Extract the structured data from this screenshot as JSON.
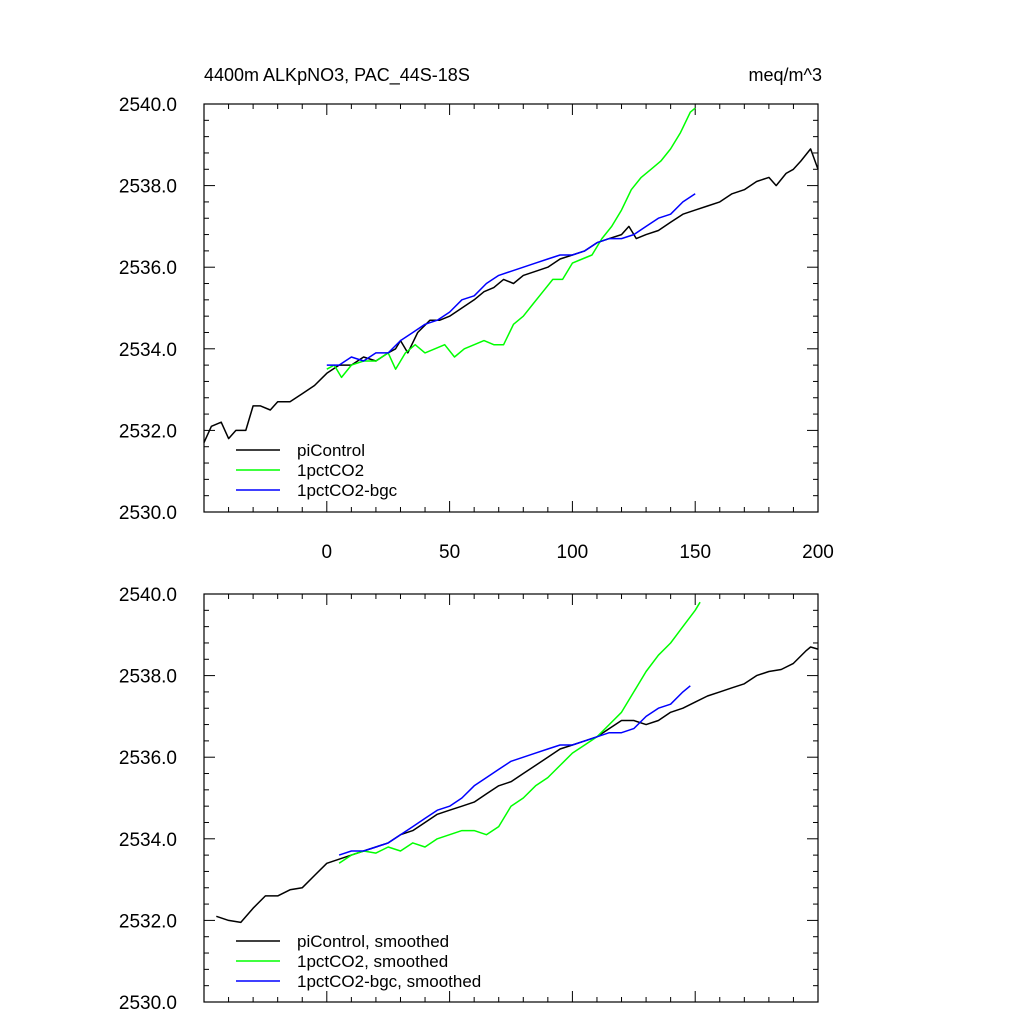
{
  "chart_data": [
    {
      "type": "line",
      "title": "4400m ALKpNO3, PAC_44S-18S",
      "units": "meq/m^3",
      "xlim": [
        -50,
        200
      ],
      "ylim": [
        2530,
        2540
      ],
      "xticks": [
        "0",
        "50",
        "100",
        "150",
        "200"
      ],
      "yticks": [
        "2530.0",
        "2532.0",
        "2534.0",
        "2536.0",
        "2538.0",
        "2540.0"
      ],
      "legend_position": "bottom-left",
      "grid": false,
      "series": [
        {
          "name": "piControl",
          "color": "#000000",
          "points": [
            [
              -50,
              2531.7
            ],
            [
              -47,
              2532.1
            ],
            [
              -43,
              2532.2
            ],
            [
              -40,
              2531.8
            ],
            [
              -37,
              2532.0
            ],
            [
              -33,
              2532.0
            ],
            [
              -30,
              2532.6
            ],
            [
              -27,
              2532.6
            ],
            [
              -23,
              2532.5
            ],
            [
              -20,
              2532.7
            ],
            [
              -15,
              2532.7
            ],
            [
              -10,
              2532.9
            ],
            [
              -5,
              2533.1
            ],
            [
              0,
              2533.4
            ],
            [
              5,
              2533.6
            ],
            [
              10,
              2533.6
            ],
            [
              15,
              2533.8
            ],
            [
              20,
              2533.7
            ],
            [
              25,
              2533.9
            ],
            [
              28,
              2534.0
            ],
            [
              30,
              2534.2
            ],
            [
              33,
              2533.9
            ],
            [
              37,
              2534.4
            ],
            [
              42,
              2534.7
            ],
            [
              46,
              2534.7
            ],
            [
              50,
              2534.8
            ],
            [
              55,
              2535.0
            ],
            [
              60,
              2535.2
            ],
            [
              64,
              2535.4
            ],
            [
              68,
              2535.5
            ],
            [
              72,
              2535.7
            ],
            [
              76,
              2535.6
            ],
            [
              80,
              2535.8
            ],
            [
              85,
              2535.9
            ],
            [
              90,
              2536.0
            ],
            [
              95,
              2536.2
            ],
            [
              100,
              2536.3
            ],
            [
              105,
              2536.4
            ],
            [
              110,
              2536.6
            ],
            [
              115,
              2536.7
            ],
            [
              120,
              2536.8
            ],
            [
              123,
              2537.0
            ],
            [
              126,
              2536.7
            ],
            [
              130,
              2536.8
            ],
            [
              135,
              2536.9
            ],
            [
              140,
              2537.1
            ],
            [
              145,
              2537.3
            ],
            [
              150,
              2537.4
            ],
            [
              155,
              2537.5
            ],
            [
              160,
              2537.6
            ],
            [
              165,
              2537.8
            ],
            [
              170,
              2537.9
            ],
            [
              175,
              2538.1
            ],
            [
              180,
              2538.2
            ],
            [
              183,
              2538.0
            ],
            [
              187,
              2538.3
            ],
            [
              190,
              2538.4
            ],
            [
              193,
              2538.6
            ],
            [
              197,
              2538.9
            ],
            [
              200,
              2538.4
            ]
          ]
        },
        {
          "name": "1pctCO2",
          "color": "#00ff00",
          "points": [
            [
              0,
              2533.5
            ],
            [
              3,
              2533.6
            ],
            [
              6,
              2533.3
            ],
            [
              10,
              2533.6
            ],
            [
              15,
              2533.7
            ],
            [
              20,
              2533.7
            ],
            [
              25,
              2533.9
            ],
            [
              28,
              2533.5
            ],
            [
              32,
              2533.9
            ],
            [
              36,
              2534.1
            ],
            [
              40,
              2533.9
            ],
            [
              44,
              2534.0
            ],
            [
              48,
              2534.1
            ],
            [
              52,
              2533.8
            ],
            [
              56,
              2534.0
            ],
            [
              60,
              2534.1
            ],
            [
              64,
              2534.2
            ],
            [
              68,
              2534.1
            ],
            [
              72,
              2534.1
            ],
            [
              76,
              2534.6
            ],
            [
              80,
              2534.8
            ],
            [
              84,
              2535.1
            ],
            [
              88,
              2535.4
            ],
            [
              92,
              2535.7
            ],
            [
              96,
              2535.7
            ],
            [
              100,
              2536.1
            ],
            [
              104,
              2536.2
            ],
            [
              108,
              2536.3
            ],
            [
              112,
              2536.7
            ],
            [
              116,
              2537.0
            ],
            [
              120,
              2537.4
            ],
            [
              124,
              2537.9
            ],
            [
              128,
              2538.2
            ],
            [
              132,
              2538.4
            ],
            [
              136,
              2538.6
            ],
            [
              140,
              2538.9
            ],
            [
              144,
              2539.3
            ],
            [
              148,
              2539.8
            ],
            [
              150,
              2539.9
            ]
          ]
        },
        {
          "name": "1pctCO2-bgc",
          "color": "#0000ff",
          "points": [
            [
              0,
              2533.6
            ],
            [
              5,
              2533.6
            ],
            [
              10,
              2533.8
            ],
            [
              15,
              2533.7
            ],
            [
              20,
              2533.9
            ],
            [
              25,
              2533.9
            ],
            [
              30,
              2534.2
            ],
            [
              35,
              2534.4
            ],
            [
              40,
              2534.6
            ],
            [
              45,
              2534.7
            ],
            [
              50,
              2534.9
            ],
            [
              55,
              2535.2
            ],
            [
              60,
              2535.3
            ],
            [
              65,
              2535.6
            ],
            [
              70,
              2535.8
            ],
            [
              75,
              2535.9
            ],
            [
              80,
              2536.0
            ],
            [
              85,
              2536.1
            ],
            [
              90,
              2536.2
            ],
            [
              95,
              2536.3
            ],
            [
              100,
              2536.3
            ],
            [
              105,
              2536.4
            ],
            [
              110,
              2536.6
            ],
            [
              115,
              2536.7
            ],
            [
              120,
              2536.7
            ],
            [
              125,
              2536.8
            ],
            [
              130,
              2537.0
            ],
            [
              135,
              2537.2
            ],
            [
              140,
              2537.3
            ],
            [
              145,
              2537.6
            ],
            [
              150,
              2537.8
            ]
          ]
        }
      ]
    },
    {
      "type": "line",
      "title": "",
      "xlim": [
        -50,
        200
      ],
      "ylim": [
        2530,
        2540
      ],
      "yticks": [
        "2530.0",
        "2532.0",
        "2534.0",
        "2536.0",
        "2538.0",
        "2540.0"
      ],
      "legend_position": "bottom-left",
      "grid": false,
      "series": [
        {
          "name": "piControl, smoothed",
          "color": "#000000",
          "points": [
            [
              -45,
              2532.1
            ],
            [
              -40,
              2532.0
            ],
            [
              -35,
              2531.95
            ],
            [
              -30,
              2532.3
            ],
            [
              -25,
              2532.6
            ],
            [
              -20,
              2532.6
            ],
            [
              -15,
              2532.75
            ],
            [
              -10,
              2532.8
            ],
            [
              -5,
              2533.1
            ],
            [
              0,
              2533.4
            ],
            [
              5,
              2533.5
            ],
            [
              10,
              2533.6
            ],
            [
              15,
              2533.7
            ],
            [
              20,
              2533.8
            ],
            [
              25,
              2533.9
            ],
            [
              30,
              2534.1
            ],
            [
              35,
              2534.2
            ],
            [
              40,
              2534.4
            ],
            [
              45,
              2534.6
            ],
            [
              50,
              2534.7
            ],
            [
              55,
              2534.8
            ],
            [
              60,
              2534.9
            ],
            [
              65,
              2535.1
            ],
            [
              70,
              2535.3
            ],
            [
              75,
              2535.4
            ],
            [
              80,
              2535.6
            ],
            [
              85,
              2535.8
            ],
            [
              90,
              2536.0
            ],
            [
              95,
              2536.2
            ],
            [
              100,
              2536.3
            ],
            [
              105,
              2536.4
            ],
            [
              110,
              2536.5
            ],
            [
              115,
              2536.7
            ],
            [
              120,
              2536.9
            ],
            [
              125,
              2536.9
            ],
            [
              130,
              2536.8
            ],
            [
              135,
              2536.9
            ],
            [
              140,
              2537.1
            ],
            [
              145,
              2537.2
            ],
            [
              150,
              2537.35
            ],
            [
              155,
              2537.5
            ],
            [
              160,
              2537.6
            ],
            [
              165,
              2537.7
            ],
            [
              170,
              2537.8
            ],
            [
              175,
              2538.0
            ],
            [
              180,
              2538.1
            ],
            [
              185,
              2538.15
            ],
            [
              190,
              2538.3
            ],
            [
              195,
              2538.6
            ],
            [
              197,
              2538.7
            ],
            [
              200,
              2538.65
            ]
          ]
        },
        {
          "name": "1pctCO2, smoothed",
          "color": "#00ff00",
          "points": [
            [
              5,
              2533.4
            ],
            [
              10,
              2533.6
            ],
            [
              15,
              2533.7
            ],
            [
              20,
              2533.65
            ],
            [
              25,
              2533.8
            ],
            [
              30,
              2533.7
            ],
            [
              35,
              2533.9
            ],
            [
              40,
              2533.8
            ],
            [
              45,
              2534.0
            ],
            [
              50,
              2534.1
            ],
            [
              55,
              2534.2
            ],
            [
              60,
              2534.2
            ],
            [
              65,
              2534.1
            ],
            [
              70,
              2534.3
            ],
            [
              75,
              2534.8
            ],
            [
              80,
              2535.0
            ],
            [
              85,
              2535.3
            ],
            [
              90,
              2535.5
            ],
            [
              95,
              2535.8
            ],
            [
              100,
              2536.1
            ],
            [
              105,
              2536.3
            ],
            [
              110,
              2536.5
            ],
            [
              115,
              2536.8
            ],
            [
              120,
              2537.1
            ],
            [
              125,
              2537.6
            ],
            [
              130,
              2538.1
            ],
            [
              135,
              2538.5
            ],
            [
              140,
              2538.8
            ],
            [
              145,
              2539.2
            ],
            [
              150,
              2539.6
            ],
            [
              152,
              2539.8
            ]
          ]
        },
        {
          "name": "1pctCO2-bgc, smoothed",
          "color": "#0000ff",
          "points": [
            [
              5,
              2533.6
            ],
            [
              10,
              2533.7
            ],
            [
              15,
              2533.7
            ],
            [
              20,
              2533.8
            ],
            [
              25,
              2533.9
            ],
            [
              30,
              2534.1
            ],
            [
              35,
              2534.3
            ],
            [
              40,
              2534.5
            ],
            [
              45,
              2534.7
            ],
            [
              50,
              2534.8
            ],
            [
              55,
              2535.0
            ],
            [
              60,
              2535.3
            ],
            [
              65,
              2535.5
            ],
            [
              70,
              2535.7
            ],
            [
              75,
              2535.9
            ],
            [
              80,
              2536.0
            ],
            [
              85,
              2536.1
            ],
            [
              90,
              2536.2
            ],
            [
              95,
              2536.3
            ],
            [
              100,
              2536.3
            ],
            [
              105,
              2536.4
            ],
            [
              110,
              2536.5
            ],
            [
              115,
              2536.6
            ],
            [
              120,
              2536.6
            ],
            [
              125,
              2536.7
            ],
            [
              130,
              2537.0
            ],
            [
              135,
              2537.2
            ],
            [
              140,
              2537.3
            ],
            [
              145,
              2537.6
            ],
            [
              148,
              2537.75
            ]
          ]
        }
      ]
    }
  ]
}
